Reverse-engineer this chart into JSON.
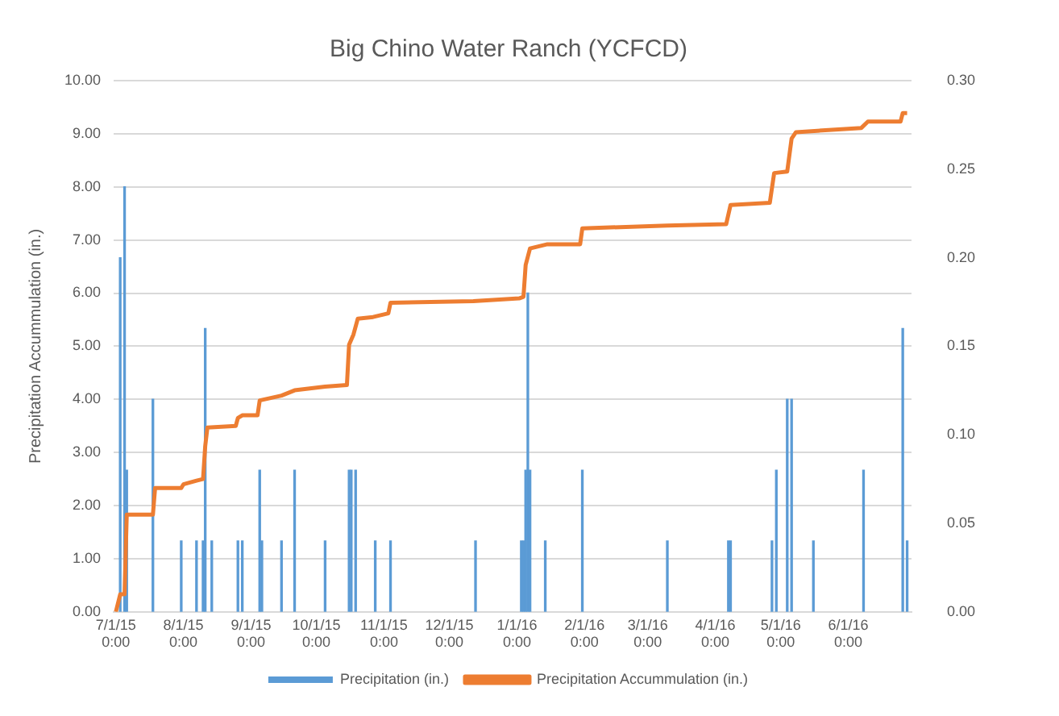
{
  "chart_data": {
    "type": "bar",
    "title": "Big Chino Water Ranch (YCFCD)",
    "ylabel": "Precipitation Accummulation (in.)",
    "xlim": [
      "2015-06-30",
      "2016-06-30"
    ],
    "xticks": [
      {
        "value": "2015-07-01",
        "label": "7/1/15 0:00"
      },
      {
        "value": "2015-08-01",
        "label": "8/1/15 0:00"
      },
      {
        "value": "2015-09-01",
        "label": "9/1/15 0:00"
      },
      {
        "value": "2015-10-01",
        "label": "10/1/15 0:00"
      },
      {
        "value": "2015-11-01",
        "label": "11/1/15 0:00"
      },
      {
        "value": "2015-12-01",
        "label": "12/1/15 0:00"
      },
      {
        "value": "2016-01-01",
        "label": "1/1/16 0:00"
      },
      {
        "value": "2016-02-01",
        "label": "2/1/16 0:00"
      },
      {
        "value": "2016-03-01",
        "label": "3/1/16 0:00"
      },
      {
        "value": "2016-04-01",
        "label": "4/1/16 0:00"
      },
      {
        "value": "2016-05-01",
        "label": "5/1/16 0:00"
      },
      {
        "value": "2016-06-01",
        "label": "6/1/16 0:00"
      }
    ],
    "ylim": [
      0,
      10
    ],
    "yticks": [
      {
        "value": 0,
        "label": "0.00"
      },
      {
        "value": 1,
        "label": "1.00"
      },
      {
        "value": 2,
        "label": "2.00"
      },
      {
        "value": 3,
        "label": "3.00"
      },
      {
        "value": 4,
        "label": "4.00"
      },
      {
        "value": 5,
        "label": "5.00"
      },
      {
        "value": 6,
        "label": "6.00"
      },
      {
        "value": 7,
        "label": "7.00"
      },
      {
        "value": 8,
        "label": "8.00"
      },
      {
        "value": 9,
        "label": "9.00"
      },
      {
        "value": 10,
        "label": "10.00"
      }
    ],
    "y2lim": [
      0,
      0.3
    ],
    "y2ticks": [
      {
        "value": 0,
        "label": "0.00"
      },
      {
        "value": 0.05,
        "label": "0.05"
      },
      {
        "value": 0.1,
        "label": "0.10"
      },
      {
        "value": 0.15,
        "label": "0.15"
      },
      {
        "value": 0.2,
        "label": "0.20"
      },
      {
        "value": 0.25,
        "label": "0.25"
      },
      {
        "value": 0.3,
        "label": "0.30"
      }
    ],
    "grid": "y",
    "legend": "bottom",
    "marker": "none",
    "series": [
      {
        "name": "Precipitation (in.)",
        "axis": "y2",
        "color": "#5b9bd5",
        "x": [
          "2015-07-03",
          "2015-07-05",
          "2015-07-06",
          "2015-07-18",
          "2015-07-31",
          "2015-08-07",
          "2015-08-10",
          "2015-08-11",
          "2015-08-14",
          "2015-08-26",
          "2015-08-28",
          "2015-09-05",
          "2015-09-06",
          "2015-09-15",
          "2015-09-21",
          "2015-10-05",
          "2015-10-16",
          "2015-10-17",
          "2015-10-19",
          "2015-10-28",
          "2015-11-04",
          "2015-12-13",
          "2016-01-03",
          "2016-01-04",
          "2016-01-05",
          "2016-01-06",
          "2016-01-07",
          "2016-01-14",
          "2016-01-31",
          "2016-03-10",
          "2016-04-07",
          "2016-04-08",
          "2016-04-27",
          "2016-04-29",
          "2016-05-04",
          "2016-05-06",
          "2016-05-16",
          "2016-06-08",
          "2016-06-26",
          "2016-06-28"
        ],
        "values": [
          0.2,
          0.24,
          0.08,
          0.12,
          0.04,
          0.04,
          0.04,
          0.16,
          0.04,
          0.04,
          0.04,
          0.08,
          0.04,
          0.04,
          0.08,
          0.04,
          0.08,
          0.08,
          0.08,
          0.04,
          0.04,
          0.04,
          0.04,
          0.04,
          0.08,
          0.18,
          0.08,
          0.04,
          0.08,
          0.04,
          0.04,
          0.04,
          0.04,
          0.08,
          0.12,
          0.12,
          0.04,
          0.08,
          0.16,
          0.04
        ]
      },
      {
        "name": "Precipitation Accummulation (in.)",
        "type": "line",
        "color": "#ed7d31",
        "x": [
          "2015-07-01",
          "2015-07-03",
          "2015-07-05",
          "2015-07-06",
          "2015-07-18",
          "2015-07-19",
          "2015-07-31",
          "2015-08-01",
          "2015-08-07",
          "2015-08-10",
          "2015-08-11",
          "2015-08-12",
          "2015-08-25",
          "2015-08-26",
          "2015-08-28",
          "2015-09-04",
          "2015-09-05",
          "2015-09-15",
          "2015-09-21",
          "2015-10-05",
          "2015-10-15",
          "2015-10-16",
          "2015-10-18",
          "2015-10-20",
          "2015-10-27",
          "2015-11-03",
          "2015-11-04",
          "2015-12-12",
          "2016-01-02",
          "2016-01-04",
          "2016-01-05",
          "2016-01-07",
          "2016-01-15",
          "2016-01-30",
          "2016-01-31",
          "2016-03-10",
          "2016-04-06",
          "2016-04-08",
          "2016-04-26",
          "2016-04-28",
          "2016-05-04",
          "2016-05-06",
          "2016-05-08",
          "2016-06-07",
          "2016-06-10",
          "2016-06-25",
          "2016-06-26",
          "2016-06-28"
        ],
        "values": [
          0,
          0.33,
          0.33,
          1.83,
          1.83,
          2.33,
          2.33,
          2.4,
          2.47,
          2.5,
          3.12,
          3.47,
          3.5,
          3.65,
          3.7,
          3.7,
          3.98,
          4.07,
          4.17,
          4.24,
          4.27,
          5.03,
          5.22,
          5.52,
          5.55,
          5.62,
          5.82,
          5.85,
          5.9,
          5.93,
          6.53,
          6.84,
          6.92,
          6.92,
          7.22,
          7.27,
          7.3,
          7.66,
          7.7,
          8.26,
          8.29,
          8.91,
          9.03,
          9.11,
          9.23,
          9.23,
          9.39,
          9.39
        ]
      }
    ]
  }
}
